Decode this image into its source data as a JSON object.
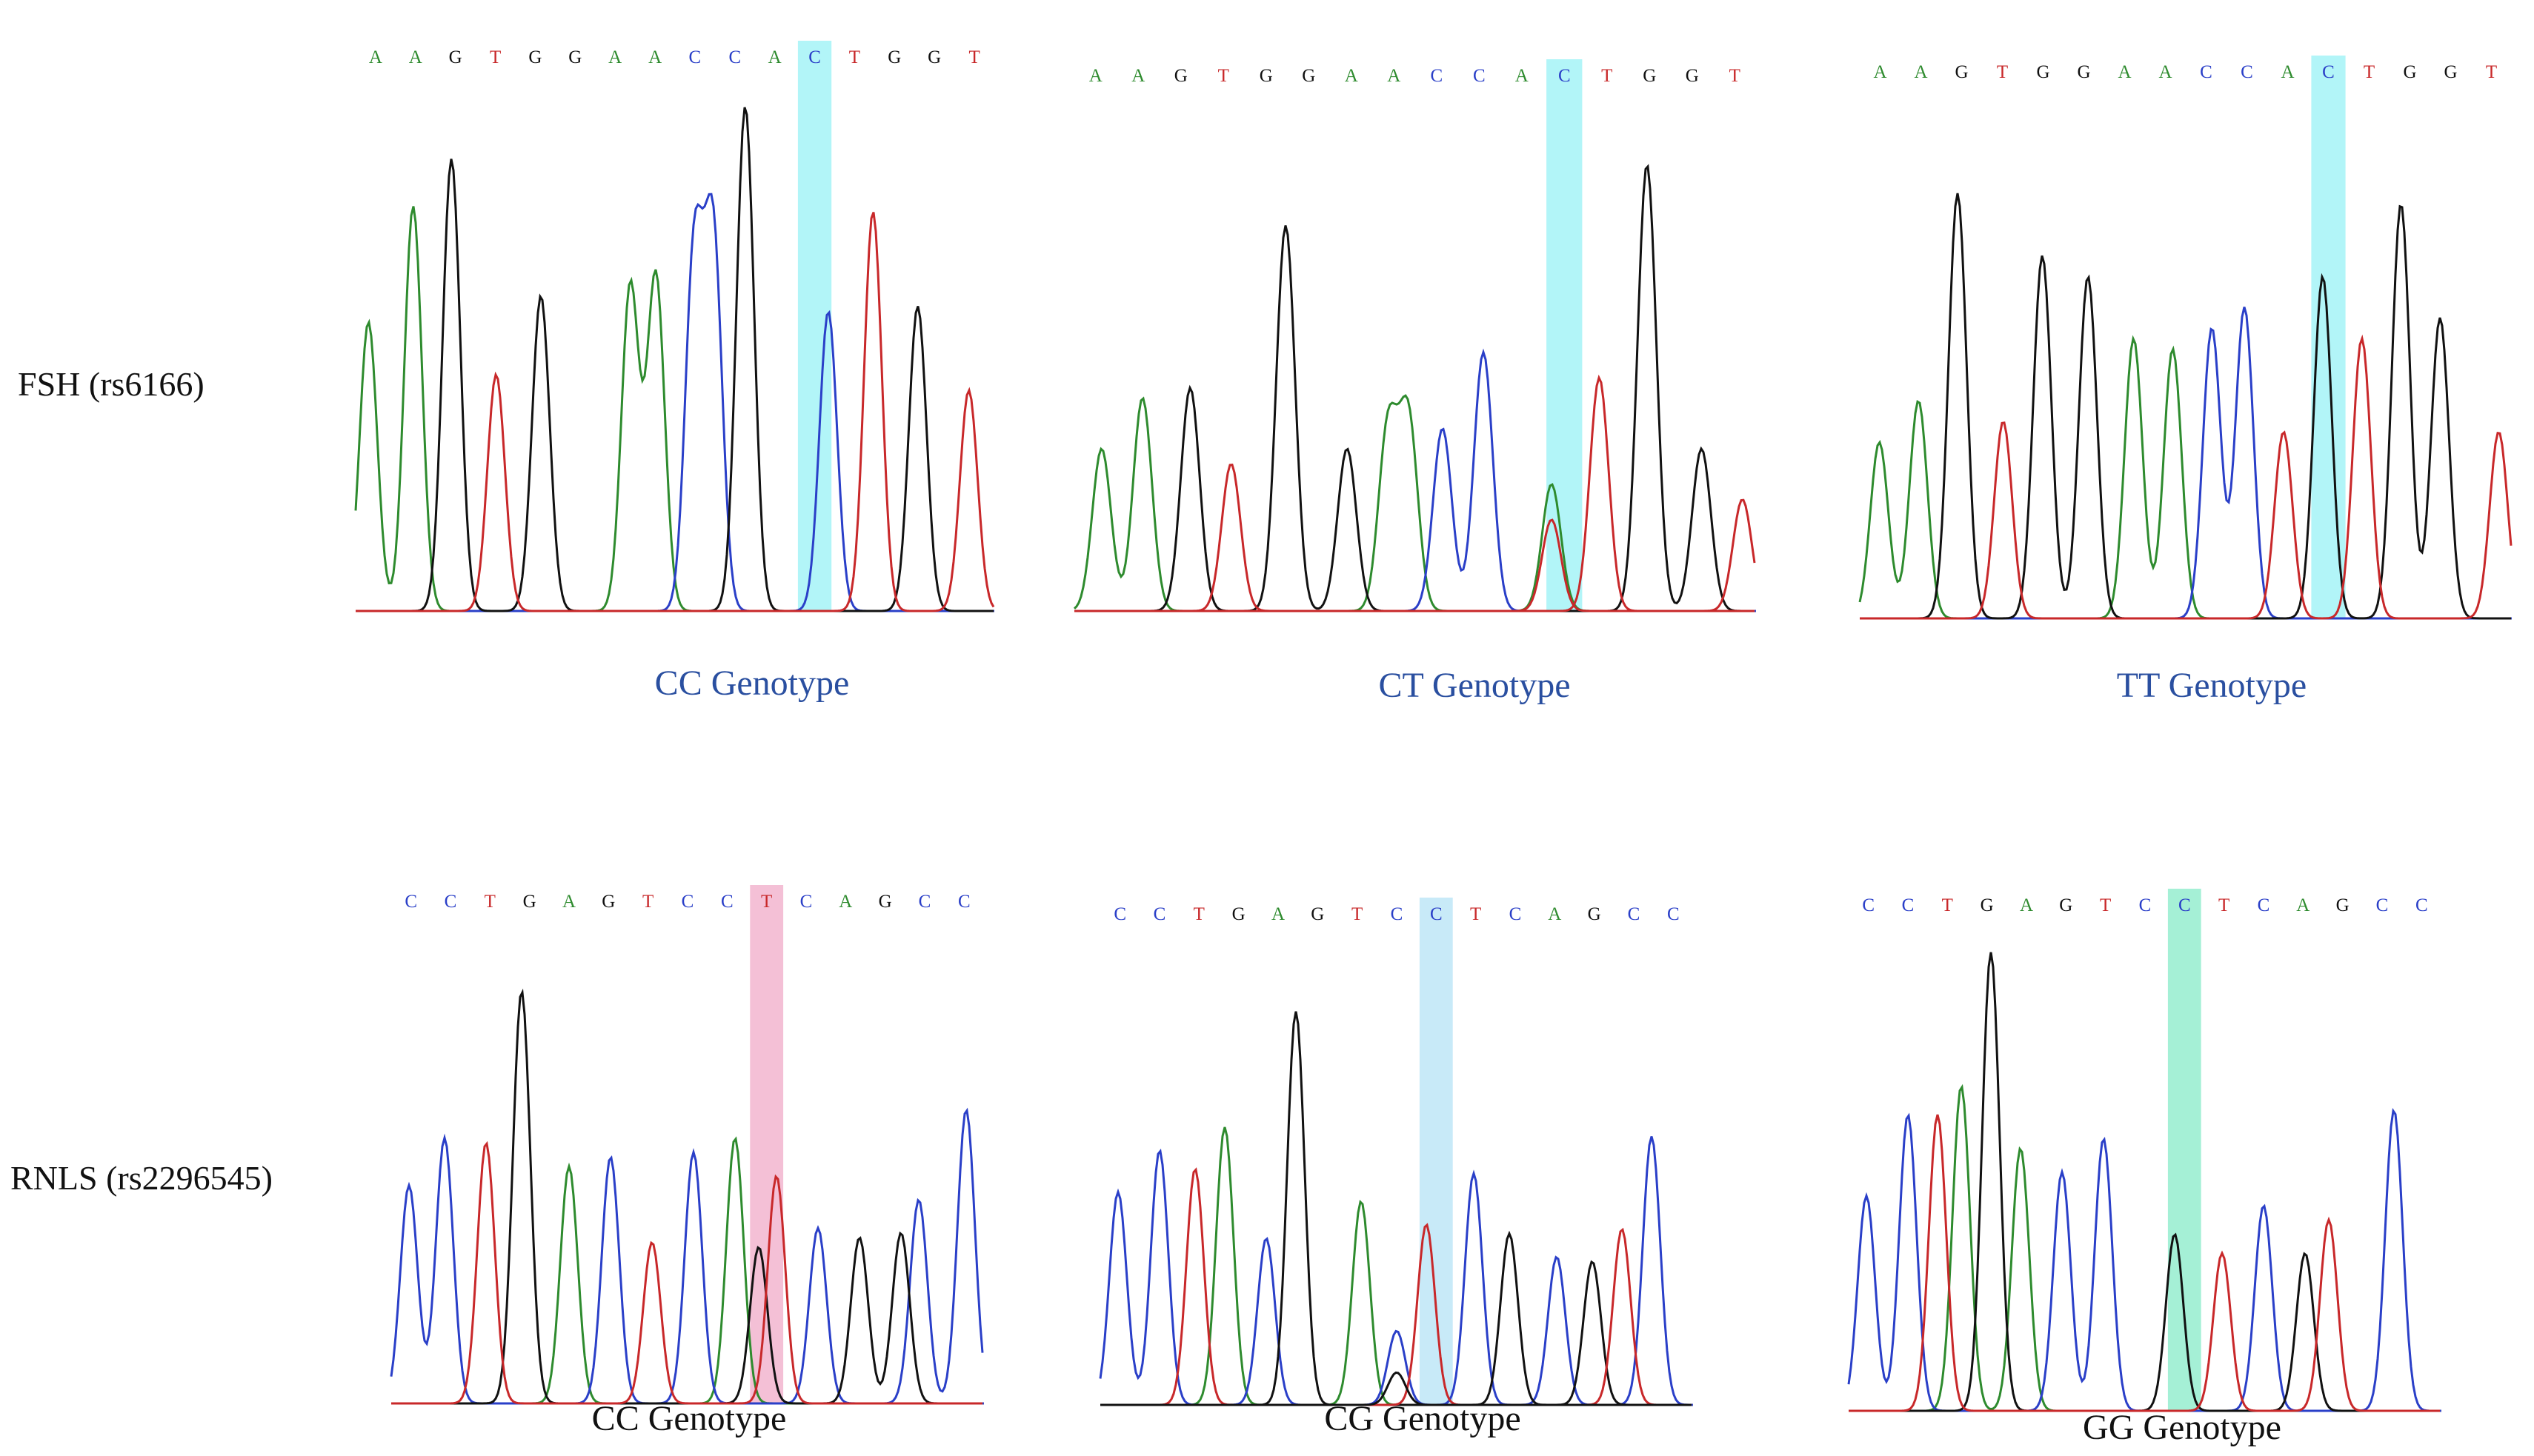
{
  "figure": {
    "rows": [
      {
        "label": "FSH (rs6166)",
        "panels": [
          {
            "sequence": "AAGTGGAACCACTGGT",
            "snp_index": 11,
            "highlight_color": "#b2f5f8",
            "caption": "CC Genotype",
            "caption_color": "#2a4fa0",
            "traces": {
              "A": [
                [
                  0.02,
                  0.55
                ],
                [
                  0.09,
                  0.77
                ],
                [
                  0.43,
                  0.62
                ],
                [
                  0.47,
                  0.64
                ]
              ],
              "G": [
                [
                  0.15,
                  0.86
                ],
                [
                  0.29,
                  0.6
                ],
                [
                  0.61,
                  0.96
                ],
                [
                  0.88,
                  0.58
                ]
              ],
              "C": [
                [
                  0.53,
                  0.68
                ],
                [
                  0.56,
                  0.71
                ],
                [
                  0.74,
                  0.57
                ]
              ],
              "T": [
                [
                  0.22,
                  0.45
                ],
                [
                  0.81,
                  0.76
                ],
                [
                  0.96,
                  0.42
                ]
              ]
            },
            "secondary": null
          },
          {
            "sequence": "AAGTGGAACCACTGGT",
            "snp_index": 11,
            "highlight_color": "#b2f5f8",
            "caption": "CT Genotype",
            "caption_color": "#2a4fa0",
            "traces": {
              "A": [
                [
                  0.04,
                  0.32
                ],
                [
                  0.1,
                  0.42
                ],
                [
                  0.46,
                  0.36
                ],
                [
                  0.49,
                  0.38
                ],
                [
                  0.7,
                  0.25
                ]
              ],
              "G": [
                [
                  0.17,
                  0.44
                ],
                [
                  0.31,
                  0.76
                ],
                [
                  0.4,
                  0.32
                ],
                [
                  0.84,
                  0.88
                ],
                [
                  0.92,
                  0.32
                ]
              ],
              "C": [
                [
                  0.54,
                  0.36
                ],
                [
                  0.6,
                  0.51
                ]
              ],
              "T": [
                [
                  0.23,
                  0.29
                ],
                [
                  0.77,
                  0.46
                ],
                [
                  0.98,
                  0.22
                ]
              ]
            },
            "secondary": {
              "base": "T",
              "position": 0.7,
              "height": 0.18
            }
          },
          {
            "sequence": "AAGTGGAACCACTGGT",
            "snp_index": 11,
            "highlight_color": "#b2f5f8",
            "caption": "TT Genotype",
            "caption_color": "#2a4fa0",
            "traces": {
              "A": [
                [
                  0.03,
                  0.34
                ],
                [
                  0.09,
                  0.42
                ],
                [
                  0.42,
                  0.54
                ],
                [
                  0.48,
                  0.52
                ]
              ],
              "G": [
                [
                  0.15,
                  0.82
                ],
                [
                  0.28,
                  0.7
                ],
                [
                  0.35,
                  0.66
                ],
                [
                  0.71,
                  0.66
                ],
                [
                  0.83,
                  0.8
                ],
                [
                  0.89,
                  0.58
                ]
              ],
              "C": [
                [
                  0.54,
                  0.56
                ],
                [
                  0.59,
                  0.6
                ]
              ],
              "T": [
                [
                  0.22,
                  0.38
                ],
                [
                  0.65,
                  0.36
                ],
                [
                  0.77,
                  0.54
                ],
                [
                  0.98,
                  0.36
                ]
              ]
            },
            "secondary": null
          }
        ]
      },
      {
        "label": "RNLS (rs2296545)",
        "panels": [
          {
            "sequence": "CCTGAGTCCTCAGCC",
            "snp_index": 9,
            "highlight_color": "#f4c0d6",
            "caption": "CC Genotype",
            "caption_color": "#111111",
            "traces": {
              "C": [
                [
                  0.03,
                  0.46
                ],
                [
                  0.09,
                  0.56
                ],
                [
                  0.37,
                  0.52
                ],
                [
                  0.51,
                  0.53
                ],
                [
                  0.72,
                  0.37
                ],
                [
                  0.89,
                  0.43
                ],
                [
                  0.97,
                  0.62
                ]
              ],
              "A": [
                [
                  0.3,
                  0.5
                ],
                [
                  0.58,
                  0.56
                ]
              ],
              "G": [
                [
                  0.22,
                  0.87
                ],
                [
                  0.62,
                  0.33
                ],
                [
                  0.79,
                  0.35
                ],
                [
                  0.86,
                  0.36
                ]
              ],
              "T": [
                [
                  0.16,
                  0.55
                ],
                [
                  0.44,
                  0.34
                ],
                [
                  0.65,
                  0.48
                ]
              ]
            },
            "secondary": null
          },
          {
            "sequence": "CCTGAGTCCTCAGCC",
            "snp_index": 8,
            "highlight_color": "#c8eaf8",
            "caption": "CG Genotype",
            "caption_color": "#111111",
            "traces": {
              "C": [
                [
                  0.03,
                  0.46
                ],
                [
                  0.1,
                  0.55
                ],
                [
                  0.28,
                  0.36
                ],
                [
                  0.5,
                  0.16
                ],
                [
                  0.63,
                  0.5
                ],
                [
                  0.77,
                  0.32
                ],
                [
                  0.93,
                  0.58
                ]
              ],
              "A": [
                [
                  0.21,
                  0.6
                ],
                [
                  0.44,
                  0.44
                ]
              ],
              "G": [
                [
                  0.33,
                  0.85
                ],
                [
                  0.69,
                  0.37
                ],
                [
                  0.83,
                  0.31
                ]
              ],
              "T": [
                [
                  0.16,
                  0.51
                ],
                [
                  0.55,
                  0.39
                ],
                [
                  0.88,
                  0.38
                ]
              ]
            },
            "secondary": {
              "base": "G",
              "position": 0.5,
              "height": 0.07
            }
          },
          {
            "sequence": "CCTGAGTCCTCAGCC",
            "snp_index": 8,
            "highlight_color": "#a5f0d6",
            "caption": "GG Genotype",
            "caption_color": "#111111",
            "traces": {
              "C": [
                [
                  0.03,
                  0.45
                ],
                [
                  0.1,
                  0.62
                ],
                [
                  0.36,
                  0.5
                ],
                [
                  0.43,
                  0.57
                ],
                [
                  0.7,
                  0.43
                ],
                [
                  0.92,
                  0.63
                ]
              ],
              "A": [
                [
                  0.19,
                  0.68
                ],
                [
                  0.29,
                  0.55
                ]
              ],
              "G": [
                [
                  0.24,
                  0.96
                ],
                [
                  0.55,
                  0.37
                ],
                [
                  0.77,
                  0.33
                ]
              ],
              "T": [
                [
                  0.15,
                  0.62
                ],
                [
                  0.63,
                  0.33
                ],
                [
                  0.81,
                  0.4
                ]
              ]
            },
            "secondary": null
          }
        ]
      }
    ],
    "base_colors": {
      "A": "#2e8b2e",
      "C": "#2a3fc8",
      "G": "#111111",
      "T": "#c8282a"
    }
  }
}
